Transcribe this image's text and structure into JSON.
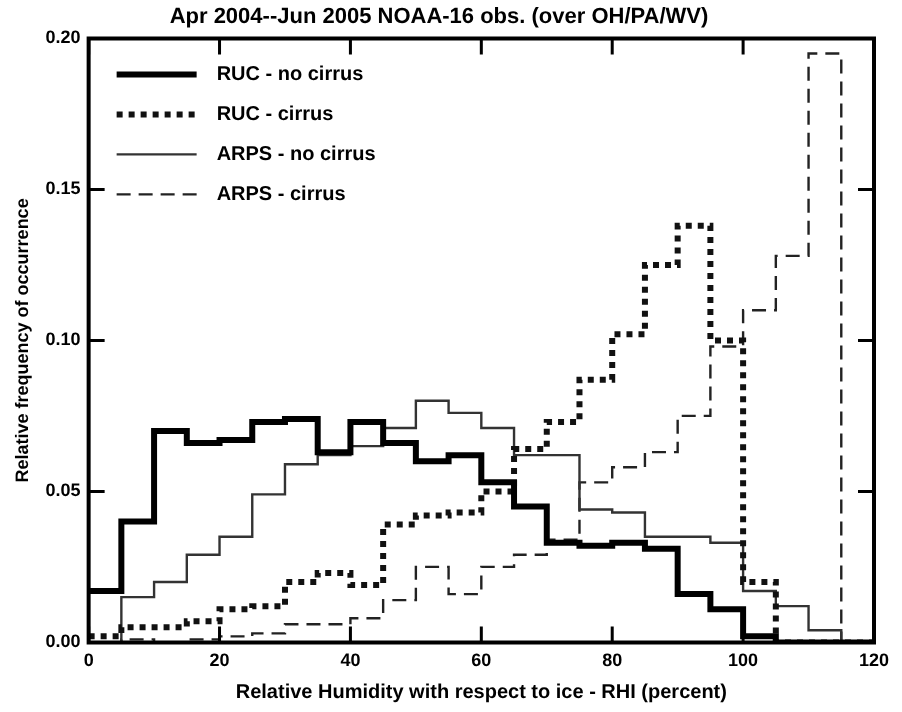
{
  "chart_data": {
    "type": "histogram",
    "title": "Apr 2004--Jun 2005 NOAA-16 obs. (over OH/PA/WV)",
    "xlabel": "Relative Humidity with respect to ice - RHI (percent)",
    "ylabel": "Relative frequency of occurrence",
    "bins": [
      0,
      5,
      10,
      15,
      20,
      25,
      30,
      35,
      40,
      45,
      50,
      55,
      60,
      65,
      70,
      75,
      80,
      85,
      90,
      95,
      100,
      105,
      110,
      115,
      120
    ],
    "series": [
      {
        "name": "RUC - no cirrus",
        "color": "#000000",
        "line_style": "solid",
        "values": [
          0.017,
          0.04,
          0.07,
          0.066,
          0.067,
          0.073,
          0.074,
          0.063,
          0.073,
          0.066,
          0.06,
          0.062,
          0.053,
          0.045,
          0.033,
          0.032,
          0.033,
          0.031,
          0.016,
          0.011,
          0.002,
          0,
          0,
          0
        ]
      },
      {
        "name": "RUC - cirrus",
        "color": "#111111",
        "line_style": "dotted",
        "values": [
          0.002,
          0.005,
          0.005,
          0.007,
          0.011,
          0.012,
          0.02,
          0.023,
          0.019,
          0.039,
          0.042,
          0.043,
          0.05,
          0.064,
          0.073,
          0.087,
          0.102,
          0.125,
          0.138,
          0.1,
          0.02,
          0,
          0,
          0
        ]
      },
      {
        "name": "ARPS - no cirrus",
        "color": "#333333",
        "line_style": "solid",
        "values": [
          0,
          0.015,
          0.02,
          0.029,
          0.035,
          0.049,
          0.059,
          0.062,
          0.065,
          0.071,
          0.08,
          0.076,
          0.071,
          0.062,
          0.062,
          0.044,
          0.043,
          0.035,
          0.035,
          0.033,
          0.017,
          0.012,
          0.004,
          0
        ]
      },
      {
        "name": "ARPS - cirrus",
        "color": "#222222",
        "line_style": "dashed",
        "values": [
          0,
          0.001,
          0,
          0.001,
          0.002,
          0.003,
          0.006,
          0.006,
          0.008,
          0.014,
          0.025,
          0.016,
          0.025,
          0.029,
          0.034,
          0.053,
          0.058,
          0.063,
          0.075,
          0.098,
          0.11,
          0.128,
          0.195,
          0
        ]
      }
    ],
    "xlim": [
      0,
      120
    ],
    "xticks": [
      0,
      20,
      40,
      60,
      80,
      100,
      120
    ],
    "ylim": [
      0,
      0.2
    ],
    "yticks": [
      {
        "value": 0,
        "label": "0.00"
      },
      {
        "value": 0.05,
        "label": "0.05"
      },
      {
        "value": 0.1,
        "label": "0.10"
      },
      {
        "value": 0.15,
        "label": "0.15"
      },
      {
        "value": 0.2,
        "label": "0.20"
      }
    ],
    "grid": false,
    "legend": "top left"
  }
}
